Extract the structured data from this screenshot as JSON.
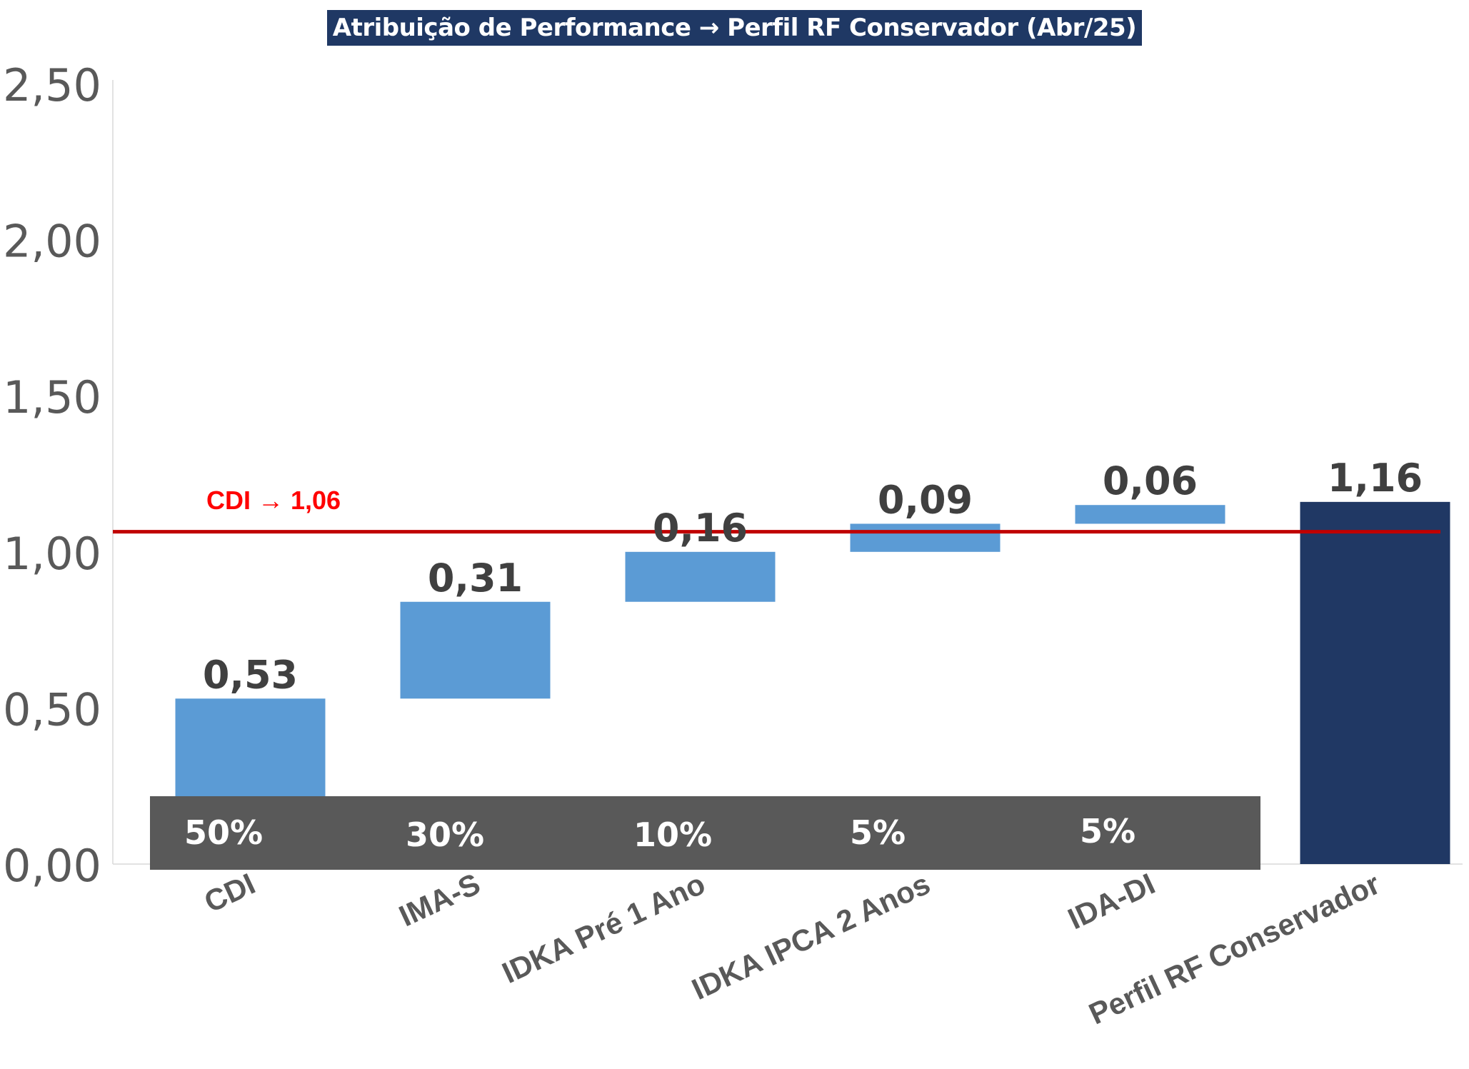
{
  "chart_data": {
    "type": "waterfall",
    "title": "Atribuição de Performance → Perfil RF Conservador (Abr/25)",
    "xlabel": "",
    "ylabel": "",
    "ylim": [
      0,
      2.5
    ],
    "yticks": [
      "0,00",
      "0,50",
      "1,00",
      "1,50",
      "2,00",
      "2,50"
    ],
    "ytick_values": [
      0,
      0.5,
      1.0,
      1.5,
      2.0,
      2.5
    ],
    "categories": [
      "CDI",
      "IMA-S",
      "IDKA Pré 1 Ano",
      "IDKA IPCA 2 Anos",
      "IDA-DI",
      "Perfil RF Conservador"
    ],
    "values": [
      0.53,
      0.31,
      0.16,
      0.09,
      0.06,
      1.16
    ],
    "value_labels": [
      "0,53",
      "0,31",
      "0,16",
      "0,09",
      "0,06",
      "1,16"
    ],
    "is_total": [
      false,
      false,
      false,
      false,
      false,
      true
    ],
    "weights": [
      "50%",
      "30%",
      "10%",
      "5%",
      "5%"
    ],
    "reference_line": {
      "label": "CDI → 1,06",
      "value": 1.06
    },
    "grid": false,
    "colors": {
      "increase": "#5b9bd5",
      "total": "#203864",
      "reference": "#c00000",
      "reference_label": "#ff0000",
      "weights_band": "#595959",
      "title_bg": "#1f3864",
      "axis_text": "#595959",
      "value_label": "#404040"
    }
  }
}
